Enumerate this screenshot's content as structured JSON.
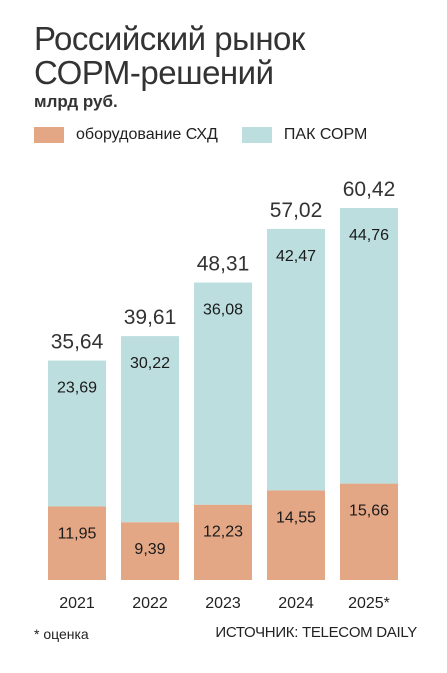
{
  "header": {
    "title": "Российский рынок\nСОРМ-решений",
    "unit": "млрд руб."
  },
  "footer": {
    "note": "* оценка",
    "source": "ИСТОЧНИК: TELECOM DAILY"
  },
  "colors": {
    "bottom_series": "#E4A785",
    "top_series": "#BCDEDE"
  },
  "chart_data": {
    "type": "bar",
    "stacked": true,
    "categories": [
      "2021",
      "2022",
      "2023",
      "2024",
      "2025*"
    ],
    "series": [
      {
        "name": "оборудование СХД",
        "values": [
          11.95,
          9.39,
          12.23,
          14.55,
          15.66
        ]
      },
      {
        "name": "ПАК СОРМ",
        "values": [
          23.69,
          30.22,
          36.08,
          42.47,
          44.76
        ]
      }
    ],
    "value_labels": {
      "bottom": [
        "11,95",
        "9,39",
        "12,23",
        "14,55",
        "15,66"
      ],
      "top": [
        "23,69",
        "30,22",
        "36,08",
        "42,47",
        "44,76"
      ],
      "totals": [
        "35,64",
        "39,61",
        "48,31",
        "57,02",
        "60,42"
      ]
    },
    "totals": [
      35.64,
      39.61,
      48.31,
      57.02,
      60.42
    ],
    "ylim": [
      0,
      60.42
    ],
    "legend_position": "top-left",
    "grid": false
  }
}
